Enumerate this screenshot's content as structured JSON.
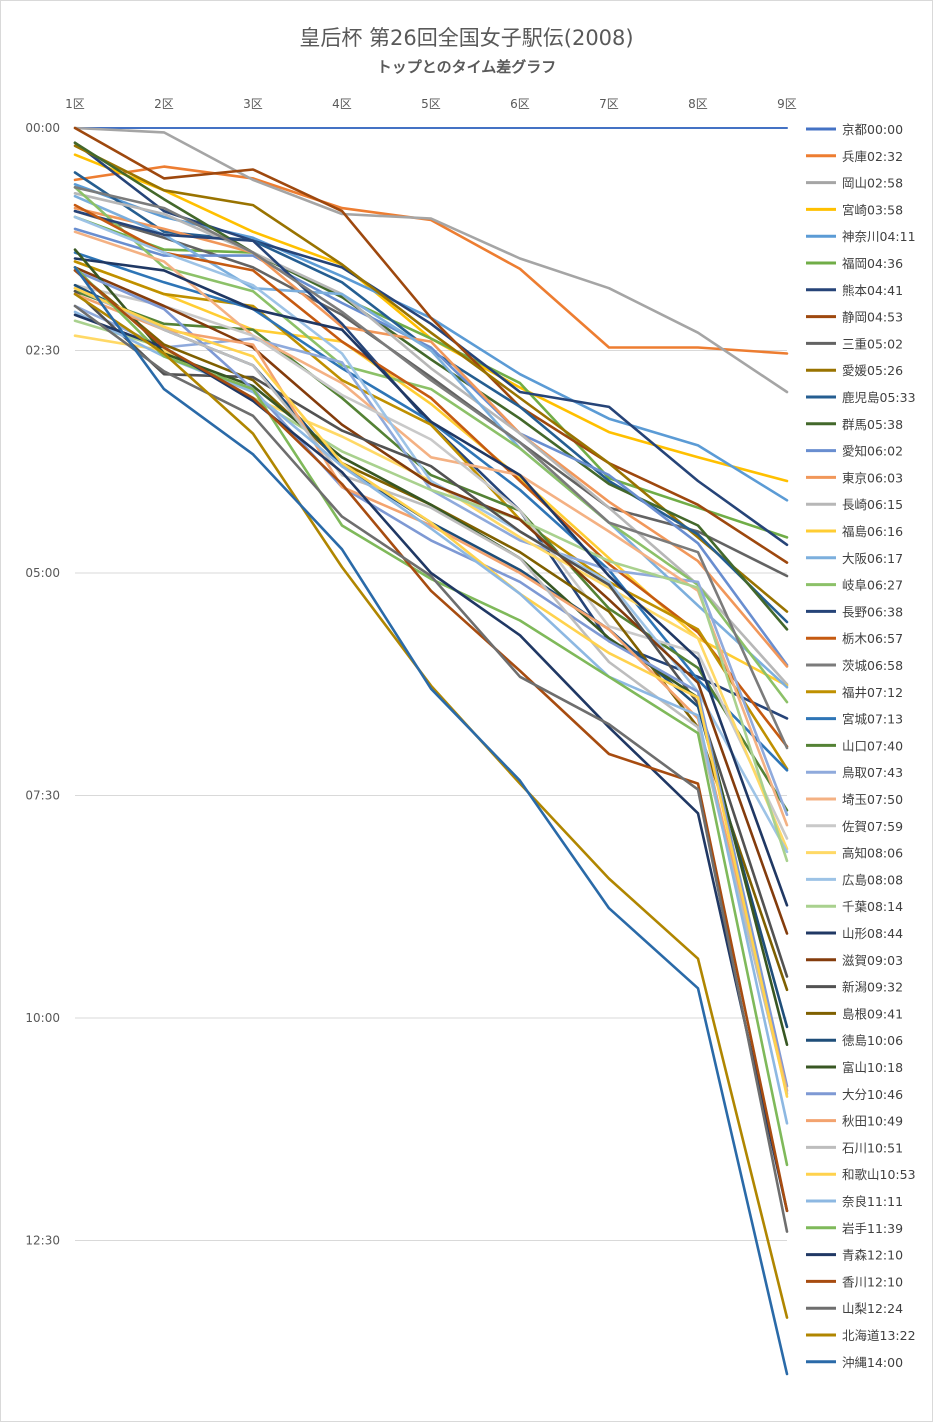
{
  "header": {
    "title": "皇后杯 第26回全国女子駅伝(2008)",
    "subtitle": "トップとのタイム差グラフ"
  },
  "chart_data": {
    "type": "line",
    "title": "皇后杯 第26回全国女子駅伝(2008)",
    "subtitle": "トップとのタイム差グラフ",
    "categories": [
      "1区",
      "2区",
      "3区",
      "4区",
      "5区",
      "6区",
      "7区",
      "8区",
      "9区"
    ],
    "y_ticks": [
      "00:00",
      "02:30",
      "05:00",
      "07:30",
      "10:00",
      "12:30"
    ],
    "y_range_seconds": [
      0,
      840
    ],
    "y_inverted": true,
    "grid": true,
    "legend_position": "right",
    "series": [
      {
        "name": "京都00:00",
        "color": "#4472C4",
        "values": [
          0,
          0,
          0,
          0,
          0,
          0,
          0,
          0,
          0
        ]
      },
      {
        "name": "兵庫02:32",
        "color": "#ED7D31",
        "values": [
          35,
          26,
          34,
          54,
          62,
          95,
          148,
          148,
          152
        ]
      },
      {
        "name": "岡山02:58",
        "color": "#A5A5A5",
        "values": [
          0,
          3,
          35,
          58,
          61,
          88,
          108,
          138,
          178
        ]
      },
      {
        "name": "宮崎03:58",
        "color": "#FFC000",
        "values": [
          18,
          42,
          70,
          92,
          142,
          175,
          205,
          222,
          238
        ]
      },
      {
        "name": "神奈川04:11",
        "color": "#5B9BD5",
        "values": [
          38,
          60,
          74,
          100,
          128,
          166,
          196,
          214,
          251
        ]
      },
      {
        "name": "福岡04:36",
        "color": "#70AD47",
        "values": [
          60,
          82,
          84,
          114,
          142,
          172,
          236,
          256,
          276
        ]
      },
      {
        "name": "熊本04:41",
        "color": "#264478",
        "values": [
          10,
          56,
          76,
          94,
          132,
          178,
          188,
          238,
          281
        ]
      },
      {
        "name": "静岡04:53",
        "color": "#9E480E",
        "values": [
          0,
          34,
          28,
          56,
          128,
          188,
          226,
          254,
          293
        ]
      },
      {
        "name": "三重05:02",
        "color": "#636363",
        "values": [
          56,
          74,
          94,
          126,
          168,
          212,
          256,
          272,
          302
        ]
      },
      {
        "name": "愛媛05:26",
        "color": "#997300",
        "values": [
          12,
          42,
          52,
          92,
          138,
          182,
          226,
          276,
          326
        ]
      },
      {
        "name": "鹿児島05:33",
        "color": "#255E91",
        "values": [
          30,
          70,
          76,
          104,
          150,
          188,
          238,
          274,
          333
        ]
      },
      {
        "name": "群馬05:38",
        "color": "#43682B",
        "values": [
          10,
          48,
          84,
          114,
          156,
          196,
          240,
          268,
          338
        ]
      },
      {
        "name": "愛知06:02",
        "color": "#698ED0",
        "values": [
          68,
          86,
          86,
          118,
          148,
          206,
          234,
          280,
          362
        ]
      },
      {
        "name": "東京06:03",
        "color": "#F1975A",
        "values": [
          54,
          68,
          84,
          134,
          144,
          206,
          252,
          292,
          363
        ]
      },
      {
        "name": "長崎06:15",
        "color": "#B7B7B7",
        "values": [
          44,
          58,
          84,
          112,
          162,
          206,
          256,
          308,
          375
        ]
      },
      {
        "name": "福島06:16",
        "color": "#FFCD33",
        "values": [
          90,
          112,
          136,
          144,
          186,
          236,
          290,
          344,
          376
        ]
      },
      {
        "name": "大阪06:17",
        "color": "#7CAFDD",
        "values": [
          46,
          72,
          108,
          112,
          150,
          216,
          266,
          322,
          377
        ]
      },
      {
        "name": "岐阜06:27",
        "color": "#8CC168",
        "values": [
          40,
          94,
          110,
          160,
          176,
          216,
          266,
          308,
          387
        ]
      },
      {
        "name": "長野06:38",
        "color": "#264478",
        "values": [
          56,
          72,
          76,
          132,
          200,
          258,
          346,
          370,
          398
        ]
      },
      {
        "name": "栃木06:57",
        "color": "#C55A11",
        "values": [
          52,
          84,
          96,
          144,
          182,
          238,
          294,
          340,
          417
        ]
      },
      {
        "name": "茨城06:58",
        "color": "#7B7B7B",
        "values": [
          40,
          54,
          84,
          124,
          170,
          212,
          266,
          286,
          418
        ]
      },
      {
        "name": "福井07:12",
        "color": "#BF9000",
        "values": [
          90,
          112,
          120,
          170,
          200,
          264,
          306,
          338,
          432
        ]
      },
      {
        "name": "宮城07:13",
        "color": "#2E75B6",
        "values": [
          84,
          104,
          122,
          162,
          198,
          244,
          298,
          372,
          433
        ]
      },
      {
        "name": "山口07:40",
        "color": "#548235",
        "values": [
          110,
          132,
          136,
          182,
          234,
          258,
          324,
          364,
          460
        ]
      },
      {
        "name": "鳥取07:43",
        "color": "#8FAADC",
        "values": [
          120,
          148,
          142,
          158,
          244,
          278,
          298,
          306,
          463
        ]
      },
      {
        "name": "埼玉07:50",
        "color": "#F4B183",
        "values": [
          70,
          90,
          140,
          172,
          222,
          234,
          272,
          312,
          470
        ]
      },
      {
        "name": "佐賀07:59",
        "color": "#C9C9C9",
        "values": [
          106,
          120,
          140,
          180,
          210,
          258,
          336,
          354,
          479
        ]
      },
      {
        "name": "高知08:06",
        "color": "#FFD966",
        "values": [
          140,
          150,
          182,
          208,
          238,
          276,
          310,
          344,
          486
        ]
      },
      {
        "name": "広島08:08",
        "color": "#9DC3E6",
        "values": [
          60,
          84,
          106,
          152,
          238,
          272,
          306,
          380,
          488
        ]
      },
      {
        "name": "千葉08:14",
        "color": "#A9D18E",
        "values": [
          130,
          148,
          182,
          218,
          244,
          264,
          292,
          310,
          494
        ]
      },
      {
        "name": "山形08:44",
        "color": "#203864",
        "values": [
          88,
          96,
          122,
          136,
          198,
          234,
          302,
          358,
          524
        ]
      },
      {
        "name": "滋賀09:03",
        "color": "#843C0C",
        "values": [
          94,
          120,
          148,
          200,
          240,
          264,
          318,
          374,
          543
        ]
      },
      {
        "name": "新潟09:32",
        "color": "#525252",
        "values": [
          110,
          166,
          168,
          204,
          228,
          272,
          308,
          388,
          572
        ]
      },
      {
        "name": "島根09:41",
        "color": "#7F6000",
        "values": [
          96,
          146,
          170,
          226,
          254,
          286,
          326,
          404,
          581
        ]
      },
      {
        "name": "徳島10:06",
        "color": "#1F4E79",
        "values": [
          106,
          136,
          160,
          228,
          266,
          298,
          338,
          390,
          606
        ]
      },
      {
        "name": "富山10:18",
        "color": "#385723",
        "values": [
          82,
          152,
          174,
          222,
          254,
          290,
          344,
          384,
          618
        ]
      },
      {
        "name": "大分10:46",
        "color": "#7E99D4",
        "values": [
          96,
          122,
          176,
          242,
          278,
          306,
          346,
          380,
          646
        ]
      },
      {
        "name": "秋田10:49",
        "color": "#F3A36F",
        "values": [
          112,
          136,
          146,
          242,
          268,
          300,
          338,
          398,
          649
        ]
      },
      {
        "name": "石川10:51",
        "color": "#BDBDBD",
        "values": [
          108,
          136,
          160,
          234,
          256,
          290,
          360,
          404,
          651
        ]
      },
      {
        "name": "和歌山10:53",
        "color": "#FFD24D",
        "values": [
          108,
          134,
          154,
          226,
          266,
          314,
          354,
          384,
          653
        ]
      },
      {
        "name": "奈良11:11",
        "color": "#8DB8E2",
        "values": [
          124,
          154,
          178,
          228,
          270,
          314,
          370,
          396,
          671
        ]
      },
      {
        "name": "岩手11:39",
        "color": "#7FB95A",
        "values": [
          94,
          154,
          176,
          268,
          304,
          332,
          370,
          408,
          699
        ]
      },
      {
        "name": "青森12:10",
        "color": "#203864",
        "values": [
          126,
          148,
          184,
          232,
          300,
          342,
          404,
          462,
          730
        ]
      },
      {
        "name": "香川12:10",
        "color": "#A74C10",
        "values": [
          96,
          148,
          182,
          240,
          312,
          366,
          422,
          442,
          730
        ]
      },
      {
        "name": "山梨12:24",
        "color": "#6E6E6E",
        "values": [
          120,
          164,
          194,
          262,
          302,
          370,
          402,
          446,
          744
        ]
      },
      {
        "name": "北海道13:22",
        "color": "#B08600",
        "values": [
          112,
          152,
          206,
          296,
          376,
          442,
          506,
          560,
          802
        ]
      },
      {
        "name": "沖縄14:00",
        "color": "#2A6AA8",
        "values": [
          94,
          176,
          220,
          284,
          378,
          440,
          526,
          580,
          840
        ]
      }
    ]
  }
}
